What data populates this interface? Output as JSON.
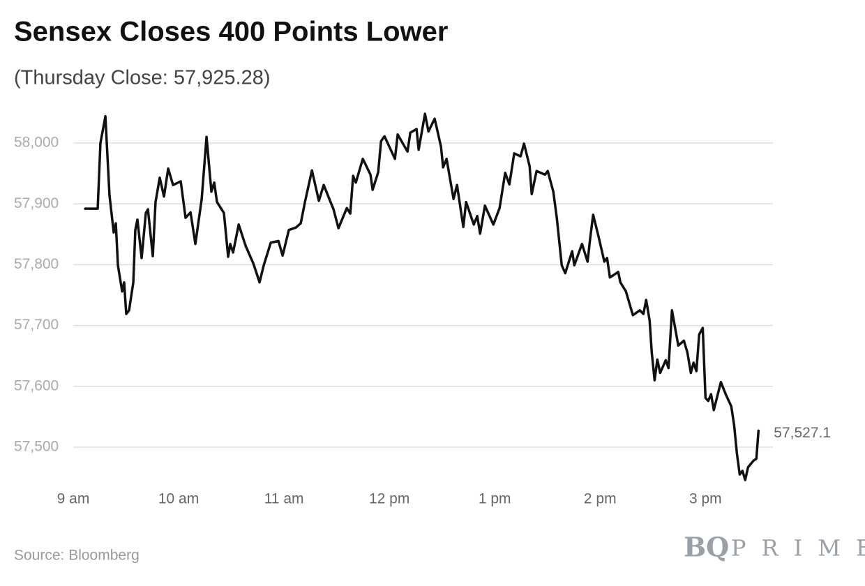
{
  "chart_data": {
    "type": "line",
    "title": "Sensex Closes 400 Points Lower",
    "subtitle": "(Thursday Close: 57,925.28)",
    "source": "Source: Bloomberg",
    "logo": {
      "mark": "BQ",
      "text": "PRIME"
    },
    "color": "#111111",
    "grid": true,
    "x": [
      9.113,
      9.232,
      9.258,
      9.305,
      9.344,
      9.384,
      9.404,
      9.424,
      9.464,
      9.483,
      9.503,
      9.53,
      9.57,
      9.589,
      9.609,
      9.649,
      9.689,
      9.709,
      9.755,
      9.781,
      9.821,
      9.861,
      9.901,
      9.947,
      10.02,
      10.066,
      10.113,
      10.159,
      10.219,
      10.265,
      10.311,
      10.338,
      10.364,
      10.43,
      10.47,
      10.49,
      10.517,
      10.57,
      10.636,
      10.709,
      10.768,
      10.808,
      10.874,
      10.947,
      10.987,
      11.046,
      11.113,
      11.159,
      11.199,
      11.265,
      11.331,
      11.377,
      11.47,
      11.517,
      11.596,
      11.629,
      11.656,
      11.682,
      11.748,
      11.821,
      11.841,
      11.894,
      11.921,
      11.954,
      12.053,
      12.079,
      12.172,
      12.199,
      12.258,
      12.278,
      12.338,
      12.371,
      12.43,
      12.49,
      12.51,
      12.543,
      12.609,
      12.642,
      12.702,
      12.728,
      12.801,
      12.834,
      12.861,
      12.907,
      12.987,
      13.046,
      13.099,
      13.139,
      13.185,
      13.245,
      13.278,
      13.331,
      13.351,
      13.397,
      13.477,
      13.503,
      13.556,
      13.589,
      13.636,
      13.669,
      13.735,
      13.755,
      13.828,
      13.881,
      13.907,
      13.934,
      13.987,
      14.04,
      14.066,
      14.093,
      14.172,
      14.192,
      14.245,
      14.311,
      14.377,
      14.411,
      14.437,
      14.47,
      14.49,
      14.517,
      14.543,
      14.57,
      14.623,
      14.649,
      14.682,
      14.742,
      14.795,
      14.828,
      14.861,
      14.887,
      14.914,
      14.94,
      14.974,
      15.0,
      15.026,
      15.053,
      15.079,
      15.146,
      15.192,
      15.245,
      15.272,
      15.298,
      15.325,
      15.351,
      15.377,
      15.404,
      15.457,
      15.483,
      15.503
    ],
    "values": [
      57892,
      57892,
      58000,
      58044,
      57914,
      57853,
      57868,
      57799,
      57756,
      57771,
      57719,
      57725,
      57771,
      57857,
      57874,
      57811,
      57885,
      57891,
      57814,
      57903,
      57943,
      57912,
      57958,
      57931,
      57937,
      57877,
      57886,
      57834,
      57908,
      58010,
      57920,
      57935,
      57903,
      57885,
      57813,
      57834,
      57820,
      57866,
      57831,
      57802,
      57771,
      57799,
      57836,
      57839,
      57815,
      57857,
      57861,
      57868,
      57903,
      57955,
      57905,
      57931,
      57891,
      57860,
      57893,
      57884,
      57946,
      57935,
      57974,
      57948,
      57923,
      57952,
      58003,
      58011,
      57974,
      58014,
      57986,
      58017,
      58023,
      57989,
      58048,
      58019,
      58040,
      57994,
      57960,
      57974,
      57908,
      57931,
      57862,
      57903,
      57866,
      57880,
      57851,
      57897,
      57866,
      57893,
      57951,
      57932,
      57983,
      57978,
      57999,
      57962,
      57916,
      57954,
      57948,
      57954,
      57920,
      57877,
      57799,
      57786,
      57822,
      57799,
      57834,
      57805,
      57845,
      57882,
      57845,
      57805,
      57811,
      57779,
      57788,
      57771,
      57756,
      57717,
      57725,
      57719,
      57742,
      57708,
      57656,
      57610,
      57644,
      57622,
      57643,
      57630,
      57725,
      57667,
      57675,
      57656,
      57622,
      57639,
      57625,
      57685,
      57696,
      57581,
      57576,
      57587,
      57561,
      57607,
      57587,
      57567,
      57536,
      57490,
      57455,
      57461,
      57446,
      57467,
      57478,
      57481,
      57527.1
    ],
    "annotations": [
      {
        "text": "57,527.1",
        "x": 15.503,
        "y": 57527.1
      }
    ],
    "xlim": [
      9,
      15.64
    ],
    "xticks": [
      {
        "value": 9,
        "label": "9 am"
      },
      {
        "value": 10,
        "label": "10 am"
      },
      {
        "value": 11,
        "label": "11 am"
      },
      {
        "value": 12,
        "label": "12 pm"
      },
      {
        "value": 13,
        "label": "1 pm"
      },
      {
        "value": 14,
        "label": "2 pm"
      },
      {
        "value": 15,
        "label": "3 pm"
      }
    ],
    "ylim": [
      57430,
      58060
    ],
    "yticks": [
      {
        "value": 57500,
        "label": "57,500"
      },
      {
        "value": 57600,
        "label": "57,600"
      },
      {
        "value": 57700,
        "label": "57,700"
      },
      {
        "value": 57800,
        "label": "57,800"
      },
      {
        "value": 57900,
        "label": "57,900"
      },
      {
        "value": 58000,
        "label": "58,000"
      }
    ]
  }
}
